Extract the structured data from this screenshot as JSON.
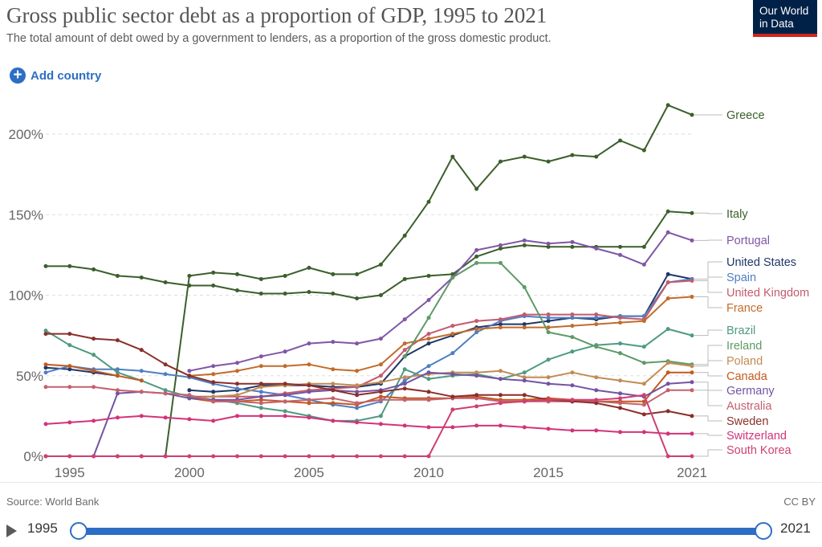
{
  "header": {
    "title": "Gross public sector debt as a proportion of GDP, 1995 to 2021",
    "subtitle": "The total amount of debt owed by a government to lenders, as a proportion of the gross domestic product.",
    "logo_line1": "Our World",
    "logo_line2": "in Data"
  },
  "controls": {
    "add_country_label": "Add country"
  },
  "footer": {
    "source": "Source: World Bank",
    "license": "CC BY"
  },
  "timeline": {
    "start": "1995",
    "end": "2021"
  },
  "colors": {
    "accent": "#2d6ec5",
    "logo_bg": "#002147",
    "logo_bar": "#ce261e"
  },
  "icons": [
    "plus-circle-icon",
    "play-icon"
  ],
  "chart_data": {
    "type": "line",
    "ylim": [
      0,
      200
    ],
    "ytick_labels": [
      "0%",
      "50%",
      "100%",
      "150%",
      "200%"
    ],
    "yticks": [
      0,
      50,
      100,
      150,
      200
    ],
    "xtick_labels": [
      "1995",
      "2000",
      "2005",
      "2010",
      "2015",
      "2021"
    ],
    "xticks": [
      1995,
      2000,
      2005,
      2010,
      2015,
      2021
    ],
    "x": [
      1994,
      1995,
      1996,
      1997,
      1998,
      1999,
      2000,
      2001,
      2002,
      2003,
      2004,
      2005,
      2006,
      2007,
      2008,
      2009,
      2010,
      2011,
      2012,
      2013,
      2014,
      2015,
      2016,
      2017,
      2018,
      2019,
      2020,
      2021
    ],
    "grid": "horizontal dashed",
    "series": [
      {
        "name": "Greece",
        "color": "#3b5f2c",
        "values": [
          0,
          0,
          0,
          0,
          0,
          0,
          112,
          114,
          113,
          110,
          112,
          117,
          113,
          113,
          119,
          137,
          158,
          186,
          166,
          183,
          186,
          183,
          187,
          186,
          196,
          190,
          218,
          212
        ]
      },
      {
        "name": "Italy",
        "color": "#3b5f2c",
        "values": [
          118,
          118,
          116,
          112,
          111,
          108,
          106,
          106,
          103,
          101,
          101,
          102,
          101,
          98,
          100,
          110,
          112,
          113,
          124,
          129,
          131,
          130,
          130,
          130,
          130,
          130,
          152,
          151
        ]
      },
      {
        "name": "Portugal",
        "color": "#8056a6",
        "values": [
          null,
          null,
          null,
          null,
          null,
          null,
          53,
          56,
          58,
          62,
          65,
          70,
          71,
          70,
          73,
          85,
          97,
          111,
          128,
          131,
          134,
          132,
          133,
          129,
          125,
          119,
          139,
          134
        ]
      },
      {
        "name": "United States",
        "color": "#203768",
        "values": [
          55,
          54,
          52,
          50,
          null,
          null,
          41,
          40,
          41,
          44,
          44,
          44,
          43,
          43,
          45,
          62,
          70,
          75,
          80,
          82,
          82,
          84,
          86,
          85,
          87,
          87,
          113,
          110
        ]
      },
      {
        "name": "Spain",
        "color": "#4e7fc2",
        "values": [
          52,
          56,
          54,
          54,
          53,
          51,
          49,
          45,
          42,
          40,
          38,
          35,
          32,
          30,
          34,
          47,
          56,
          64,
          77,
          84,
          87,
          86,
          86,
          86,
          87,
          87,
          108,
          110
        ]
      },
      {
        "name": "United Kingdom",
        "color": "#c35b6e",
        "values": [
          null,
          null,
          null,
          null,
          null,
          null,
          37,
          37,
          37,
          37,
          39,
          41,
          42,
          43,
          50,
          66,
          76,
          81,
          84,
          85,
          88,
          88,
          88,
          88,
          86,
          85,
          108,
          109
        ]
      },
      {
        "name": "France",
        "color": "#c26b2b",
        "values": [
          null,
          null,
          null,
          null,
          null,
          null,
          50,
          51,
          53,
          56,
          56,
          57,
          54,
          53,
          57,
          70,
          73,
          76,
          79,
          80,
          80,
          80,
          81,
          82,
          83,
          84,
          98,
          99
        ]
      },
      {
        "name": "Brazil",
        "color": "#4f9a82",
        "values": [
          78,
          69,
          63,
          52,
          47,
          41,
          37,
          35,
          33,
          30,
          28,
          25,
          22,
          22,
          25,
          54,
          48,
          50,
          51,
          48,
          52,
          60,
          65,
          69,
          70,
          68,
          79,
          75
        ]
      },
      {
        "name": "Ireland",
        "color": "#5e9a66",
        "values": [
          null,
          null,
          null,
          null,
          null,
          null,
          null,
          null,
          null,
          null,
          null,
          null,
          null,
          null,
          null,
          62,
          86,
          111,
          120,
          120,
          105,
          77,
          74,
          68,
          64,
          58,
          59,
          57
        ]
      },
      {
        "name": "Poland",
        "color": "#c28b55",
        "values": [
          null,
          null,
          null,
          null,
          null,
          null,
          36,
          37,
          38,
          43,
          44,
          45,
          45,
          44,
          46,
          49,
          51,
          52,
          52,
          53,
          49,
          49,
          52,
          49,
          47,
          45,
          58,
          56
        ]
      },
      {
        "name": "Canada",
        "color": "#c25a1e",
        "values": [
          57,
          56,
          53,
          50,
          47,
          null,
          36,
          34,
          34,
          35,
          34,
          33,
          33,
          32,
          37,
          36,
          36,
          36,
          37,
          35,
          35,
          36,
          35,
          34,
          34,
          34,
          52,
          52
        ]
      },
      {
        "name": "Germany",
        "color": "#7453a1",
        "values": [
          null,
          null,
          0,
          39,
          40,
          39,
          36,
          35,
          35,
          37,
          38,
          40,
          41,
          40,
          41,
          45,
          52,
          51,
          50,
          48,
          47,
          45,
          44,
          41,
          39,
          37,
          45,
          46
        ]
      },
      {
        "name": "Australia",
        "color": "#c4616f",
        "values": [
          43,
          43,
          43,
          41,
          40,
          39,
          38,
          34,
          34,
          33,
          34,
          35,
          36,
          33,
          35,
          35,
          35,
          36,
          36,
          34,
          34,
          34,
          34,
          34,
          33,
          32,
          41,
          41
        ]
      },
      {
        "name": "Sweden",
        "color": "#8a2f2a",
        "values": [
          76,
          76,
          73,
          72,
          66,
          57,
          50,
          46,
          45,
          45,
          45,
          44,
          41,
          38,
          40,
          42,
          40,
          37,
          38,
          38,
          38,
          35,
          34,
          33,
          30,
          26,
          28,
          25
        ]
      },
      {
        "name": "Switzerland",
        "color": "#d3337a",
        "values": [
          20,
          21,
          22,
          24,
          25,
          24,
          23,
          22,
          25,
          25,
          25,
          24,
          22,
          21,
          20,
          19,
          18,
          18,
          19,
          19,
          18,
          17,
          16,
          16,
          15,
          15,
          14,
          14
        ]
      },
      {
        "name": "South Korea",
        "color": "#cf3f73",
        "values": [
          0,
          0,
          0,
          0,
          0,
          0,
          0,
          0,
          0,
          0,
          0,
          0,
          0,
          0,
          0,
          0,
          0,
          29,
          31,
          33,
          34,
          35,
          35,
          35,
          36,
          38,
          0,
          0
        ]
      }
    ]
  }
}
